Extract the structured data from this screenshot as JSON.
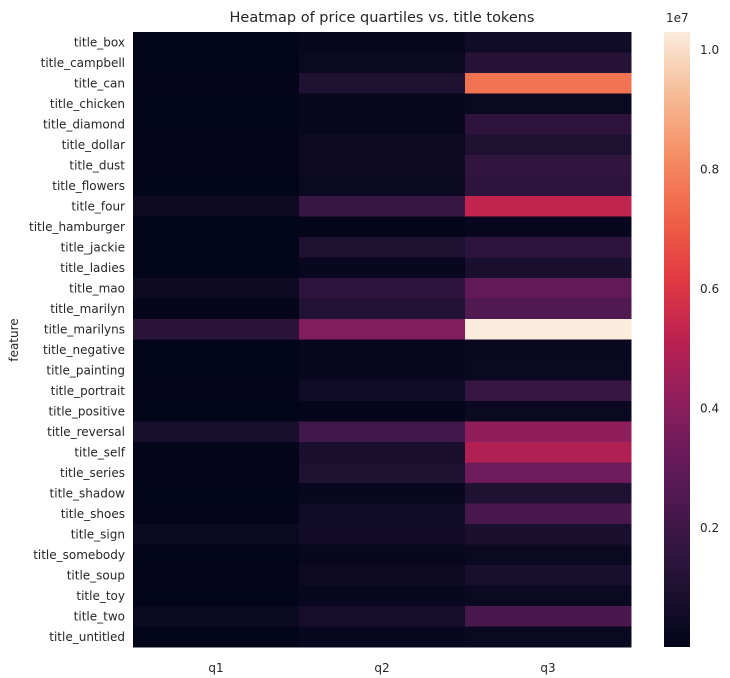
{
  "chart_data": {
    "type": "heatmap",
    "title": "Heatmap of price quartiles vs. title tokens",
    "xlabel": "",
    "ylabel": "feature",
    "columns": [
      "q1",
      "q2",
      "q3"
    ],
    "rows": [
      "title_box",
      "title_campbell",
      "title_can",
      "title_chicken",
      "title_diamond",
      "title_dollar",
      "title_dust",
      "title_flowers",
      "title_four",
      "title_hamburger",
      "title_jackie",
      "title_ladies",
      "title_mao",
      "title_marilyn",
      "title_marilyns",
      "title_negative",
      "title_painting",
      "title_portrait",
      "title_positive",
      "title_reversal",
      "title_self",
      "title_series",
      "title_shadow",
      "title_shoes",
      "title_sign",
      "title_somebody",
      "title_soup",
      "title_toy",
      "title_two",
      "title_untitled"
    ],
    "values": [
      [
        20000,
        200000,
        500000
      ],
      [
        20000,
        300000,
        1300000
      ],
      [
        30000,
        1000000,
        7600000
      ],
      [
        20000,
        150000,
        300000
      ],
      [
        20000,
        200000,
        1500000
      ],
      [
        30000,
        400000,
        1000000
      ],
      [
        30000,
        400000,
        1600000
      ],
      [
        20000,
        300000,
        1500000
      ],
      [
        400000,
        1800000,
        5300000
      ],
      [
        10000,
        100000,
        200000
      ],
      [
        20000,
        1000000,
        1500000
      ],
      [
        20000,
        200000,
        900000
      ],
      [
        400000,
        1500000,
        3000000
      ],
      [
        100000,
        1100000,
        2500000
      ],
      [
        1400000,
        3800000,
        10300000
      ],
      [
        20000,
        200000,
        250000
      ],
      [
        20000,
        200000,
        300000
      ],
      [
        30000,
        500000,
        1800000
      ],
      [
        20000,
        100000,
        300000
      ],
      [
        800000,
        2100000,
        4200000
      ],
      [
        30000,
        900000,
        4900000
      ],
      [
        30000,
        1000000,
        3300000
      ],
      [
        20000,
        200000,
        1000000
      ],
      [
        30000,
        500000,
        2300000
      ],
      [
        300000,
        600000,
        900000
      ],
      [
        20000,
        200000,
        300000
      ],
      [
        30000,
        400000,
        800000
      ],
      [
        20000,
        200000,
        300000
      ],
      [
        300000,
        700000,
        2300000
      ],
      [
        20000,
        200000,
        300000
      ]
    ],
    "vmin": 10000,
    "vmax": 10300000,
    "colorbar": {
      "ticks": [
        0.2,
        0.4,
        0.6,
        0.8,
        1.0
      ],
      "tick_labels": [
        "0.2",
        "0.4",
        "0.6",
        "0.8",
        "1.0"
      ],
      "scale_label": "1e7",
      "scale": 10000000
    },
    "colormap": "rocket",
    "grid": false
  }
}
